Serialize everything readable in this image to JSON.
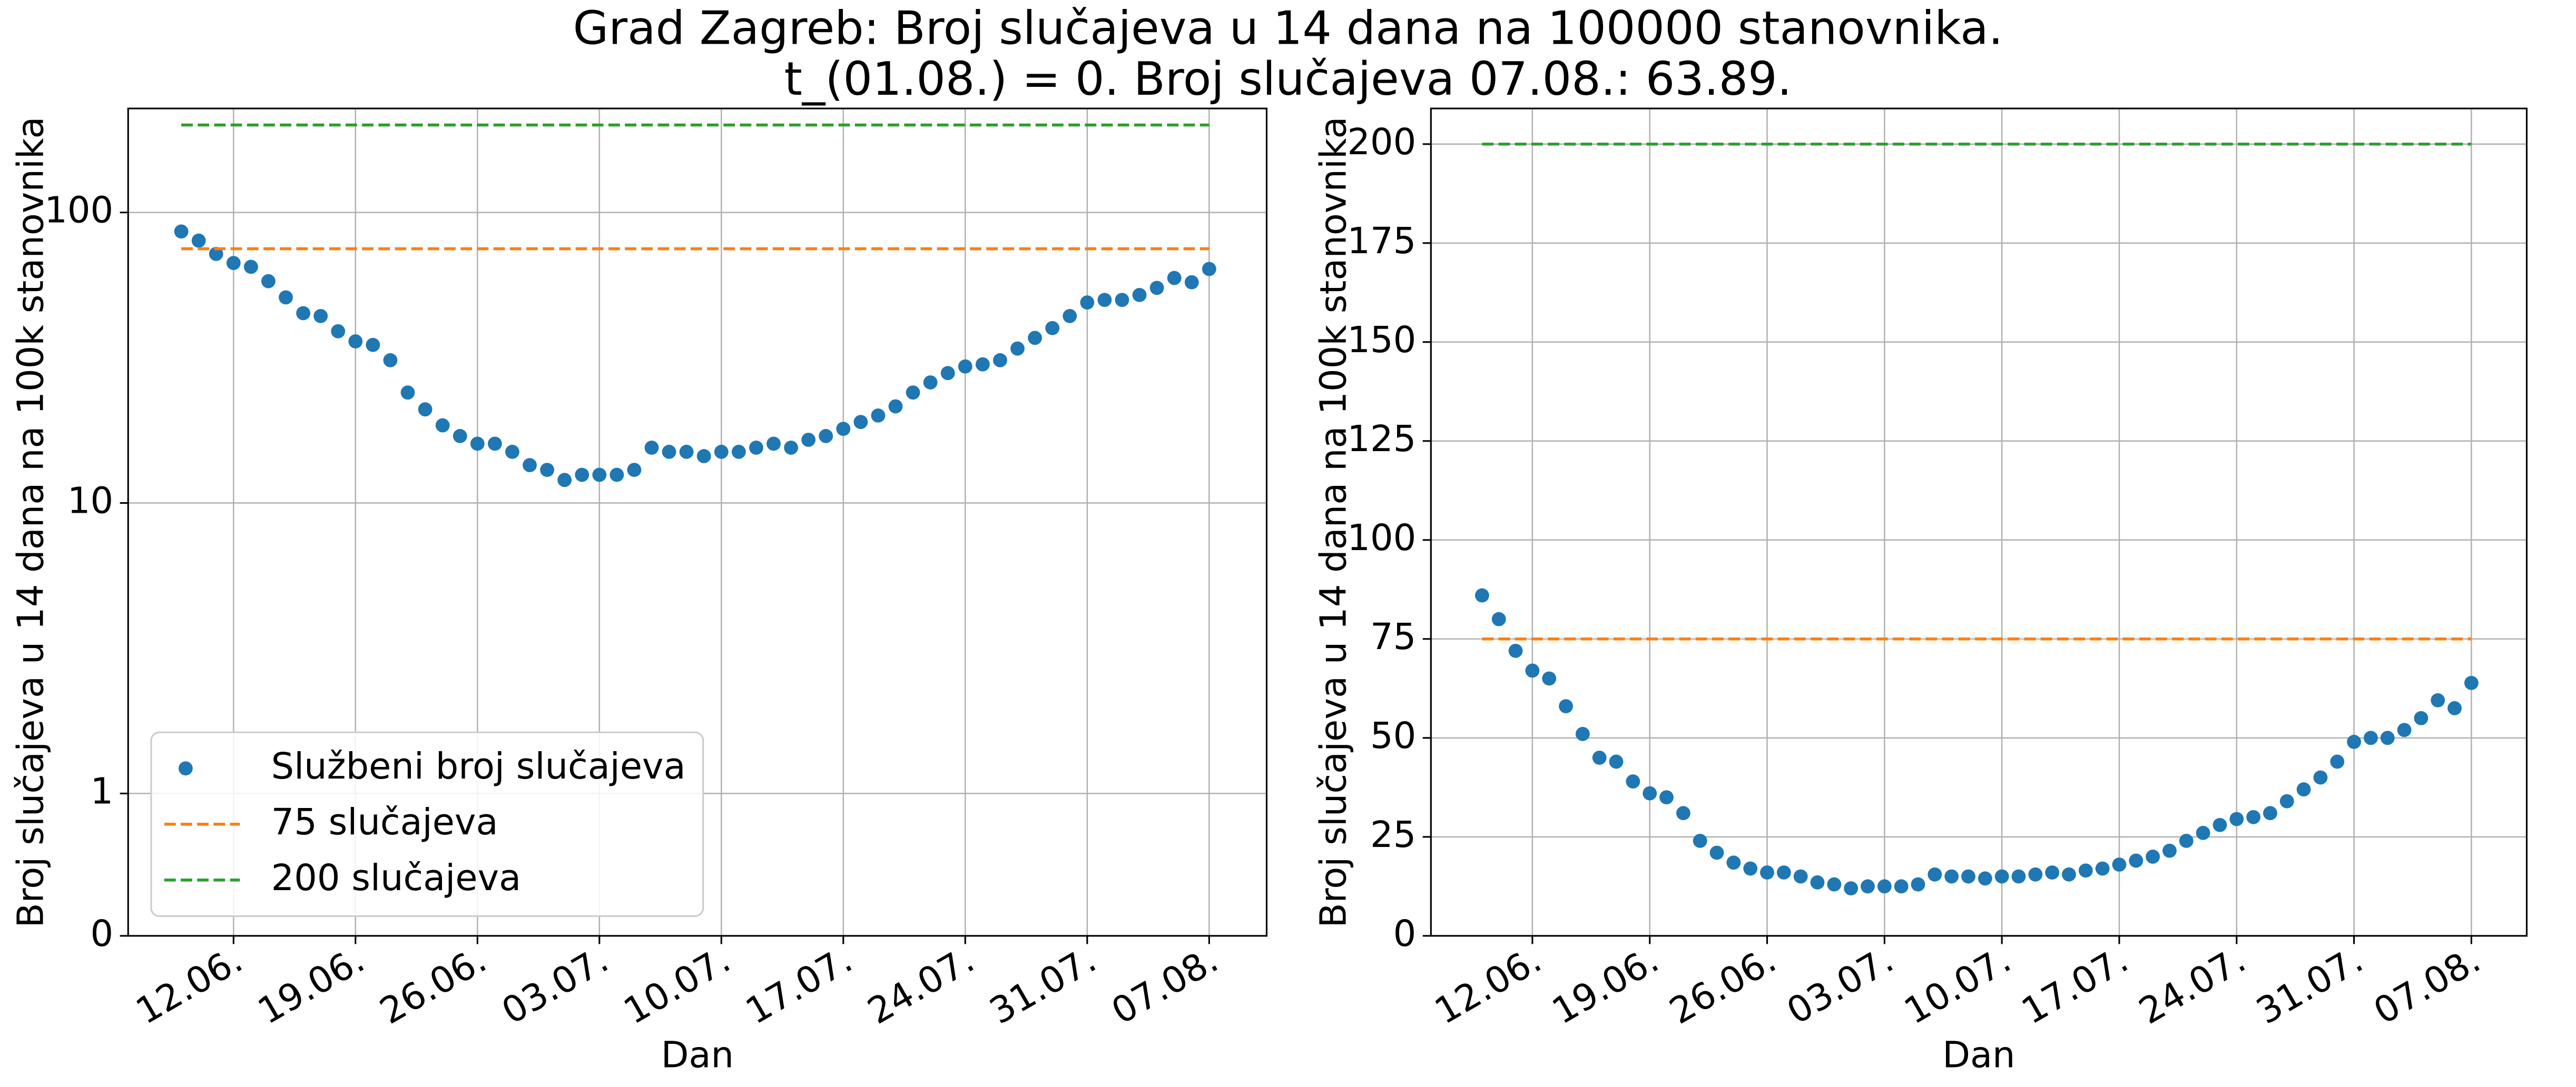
{
  "figure_title": [
    "Grad Zagreb: Broj slučajeva u 14 dana na 100000 stanovnika.",
    "t_(01.08.) = 0. Broj slučajeva 07.08.: 63.89."
  ],
  "chart_data": [
    {
      "type": "scatter",
      "yscale": "symlog",
      "grid": true,
      "legend": "lower left",
      "xlabel": "Dan",
      "ylabel": "Broj slučajeva u 14 dana na 100k stanovnika",
      "ylim": [
        0,
        228
      ],
      "yticks": [
        0,
        1,
        10,
        100
      ],
      "xticks": [
        "12.06.",
        "19.06.",
        "26.06.",
        "03.07.",
        "10.07.",
        "17.07.",
        "24.07.",
        "31.07.",
        "07.08."
      ],
      "x": [
        "09.06.",
        "10.06.",
        "11.06.",
        "12.06.",
        "13.06.",
        "14.06.",
        "15.06.",
        "16.06.",
        "17.06.",
        "18.06.",
        "19.06.",
        "20.06.",
        "21.06.",
        "22.06.",
        "23.06.",
        "24.06.",
        "25.06.",
        "26.06.",
        "27.06.",
        "28.06.",
        "29.06.",
        "30.06.",
        "01.07.",
        "02.07.",
        "03.07.",
        "04.07.",
        "05.07.",
        "06.07.",
        "07.07.",
        "08.07.",
        "09.07.",
        "10.07.",
        "11.07.",
        "12.07.",
        "13.07.",
        "14.07.",
        "15.07.",
        "16.07.",
        "17.07.",
        "18.07.",
        "19.07.",
        "20.07.",
        "21.07.",
        "22.07.",
        "23.07.",
        "24.07.",
        "25.07.",
        "26.07.",
        "27.07.",
        "28.07.",
        "29.07.",
        "30.07.",
        "31.07.",
        "01.08.",
        "02.08.",
        "03.08.",
        "04.08.",
        "05.08.",
        "06.08.",
        "07.08."
      ],
      "series": [
        {
          "name": "Službeni broj slučajeva",
          "color": "#1f77b4",
          "style": "points",
          "values": [
            86,
            80,
            72,
            67,
            65,
            58,
            51,
            45,
            44,
            39,
            36,
            35,
            31,
            24,
            21,
            18.5,
            17,
            16,
            16,
            15,
            13.5,
            13,
            12,
            12.5,
            12.5,
            12.5,
            13,
            15.5,
            15,
            15,
            14.5,
            15,
            15,
            15.5,
            16,
            15.5,
            16.5,
            17,
            18,
            19,
            20,
            21.5,
            24,
            26,
            28,
            29.5,
            30,
            31,
            34,
            37,
            40,
            44,
            49,
            50,
            50,
            52,
            55,
            59.5,
            57.5,
            63.89
          ]
        },
        {
          "name": "75 slučajeva",
          "color": "#ff7f0e",
          "style": "dashed",
          "values": [
            75,
            75,
            75,
            75,
            75,
            75,
            75,
            75,
            75,
            75,
            75,
            75,
            75,
            75,
            75,
            75,
            75,
            75,
            75,
            75,
            75,
            75,
            75,
            75,
            75,
            75,
            75,
            75,
            75,
            75,
            75,
            75,
            75,
            75,
            75,
            75,
            75,
            75,
            75,
            75,
            75,
            75,
            75,
            75,
            75,
            75,
            75,
            75,
            75,
            75,
            75,
            75,
            75,
            75,
            75,
            75,
            75,
            75,
            75,
            75
          ]
        },
        {
          "name": "200 slučajeva",
          "color": "#2ca02c",
          "style": "dashed",
          "values": [
            200,
            200,
            200,
            200,
            200,
            200,
            200,
            200,
            200,
            200,
            200,
            200,
            200,
            200,
            200,
            200,
            200,
            200,
            200,
            200,
            200,
            200,
            200,
            200,
            200,
            200,
            200,
            200,
            200,
            200,
            200,
            200,
            200,
            200,
            200,
            200,
            200,
            200,
            200,
            200,
            200,
            200,
            200,
            200,
            200,
            200,
            200,
            200,
            200,
            200,
            200,
            200,
            200,
            200,
            200,
            200,
            200,
            200,
            200,
            200
          ]
        }
      ]
    },
    {
      "type": "scatter",
      "yscale": "linear",
      "grid": true,
      "xlabel": "Dan",
      "ylabel": "Broj slučajeva u 14 dana na 100k stanovnika",
      "ylim": [
        0,
        209
      ],
      "yticks": [
        0,
        25,
        50,
        75,
        100,
        125,
        150,
        175,
        200
      ],
      "xticks": [
        "12.06.",
        "19.06.",
        "26.06.",
        "03.07.",
        "10.07.",
        "17.07.",
        "24.07.",
        "31.07.",
        "07.08."
      ],
      "x": [
        "09.06.",
        "10.06.",
        "11.06.",
        "12.06.",
        "13.06.",
        "14.06.",
        "15.06.",
        "16.06.",
        "17.06.",
        "18.06.",
        "19.06.",
        "20.06.",
        "21.06.",
        "22.06.",
        "23.06.",
        "24.06.",
        "25.06.",
        "26.06.",
        "27.06.",
        "28.06.",
        "29.06.",
        "30.06.",
        "01.07.",
        "02.07.",
        "03.07.",
        "04.07.",
        "05.07.",
        "06.07.",
        "07.07.",
        "08.07.",
        "09.07.",
        "10.07.",
        "11.07.",
        "12.07.",
        "13.07.",
        "14.07.",
        "15.07.",
        "16.07.",
        "17.07.",
        "18.07.",
        "19.07.",
        "20.07.",
        "21.07.",
        "22.07.",
        "23.07.",
        "24.07.",
        "25.07.",
        "26.07.",
        "27.07.",
        "28.07.",
        "29.07.",
        "30.07.",
        "31.07.",
        "01.08.",
        "02.08.",
        "03.08.",
        "04.08.",
        "05.08.",
        "06.08.",
        "07.08."
      ],
      "series": [
        {
          "color": "#1f77b4",
          "style": "points",
          "values": [
            86,
            80,
            72,
            67,
            65,
            58,
            51,
            45,
            44,
            39,
            36,
            35,
            31,
            24,
            21,
            18.5,
            17,
            16,
            16,
            15,
            13.5,
            13,
            12,
            12.5,
            12.5,
            12.5,
            13,
            15.5,
            15,
            15,
            14.5,
            15,
            15,
            15.5,
            16,
            15.5,
            16.5,
            17,
            18,
            19,
            20,
            21.5,
            24,
            26,
            28,
            29.5,
            30,
            31,
            34,
            37,
            40,
            44,
            49,
            50,
            50,
            52,
            55,
            59.5,
            57.5,
            63.89
          ]
        },
        {
          "color": "#ff7f0e",
          "style": "dashed",
          "values": [
            75,
            75,
            75,
            75,
            75,
            75,
            75,
            75,
            75,
            75,
            75,
            75,
            75,
            75,
            75,
            75,
            75,
            75,
            75,
            75,
            75,
            75,
            75,
            75,
            75,
            75,
            75,
            75,
            75,
            75,
            75,
            75,
            75,
            75,
            75,
            75,
            75,
            75,
            75,
            75,
            75,
            75,
            75,
            75,
            75,
            75,
            75,
            75,
            75,
            75,
            75,
            75,
            75,
            75,
            75,
            75,
            75,
            75,
            75,
            75
          ]
        },
        {
          "color": "#2ca02c",
          "style": "dashed",
          "values": [
            200,
            200,
            200,
            200,
            200,
            200,
            200,
            200,
            200,
            200,
            200,
            200,
            200,
            200,
            200,
            200,
            200,
            200,
            200,
            200,
            200,
            200,
            200,
            200,
            200,
            200,
            200,
            200,
            200,
            200,
            200,
            200,
            200,
            200,
            200,
            200,
            200,
            200,
            200,
            200,
            200,
            200,
            200,
            200,
            200,
            200,
            200,
            200,
            200,
            200,
            200,
            200,
            200,
            200,
            200,
            200,
            200,
            200,
            200,
            200
          ]
        }
      ]
    }
  ]
}
